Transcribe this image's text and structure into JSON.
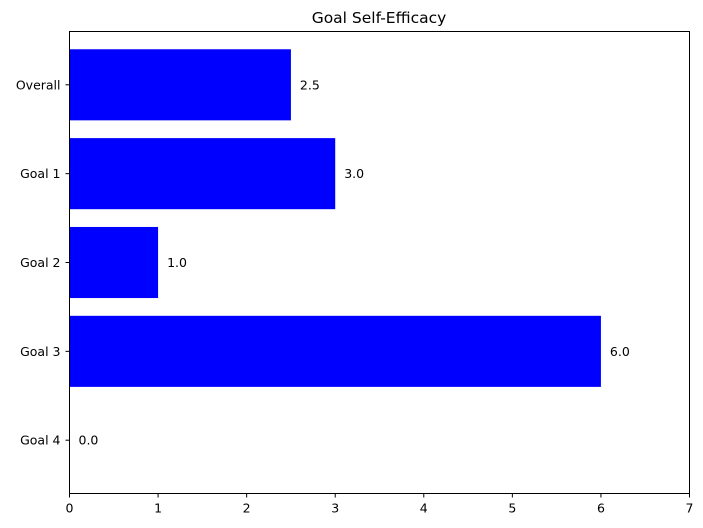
{
  "chart_data": {
    "type": "bar",
    "orientation": "horizontal",
    "title": "Goal Self-Efficacy",
    "xlabel": "",
    "ylabel": "",
    "categories": [
      "Overall",
      "Goal 1",
      "Goal 2",
      "Goal 3",
      "Goal 4"
    ],
    "values": [
      2.5,
      3.0,
      1.0,
      6.0,
      0.0
    ],
    "data_labels": [
      "2.5",
      "3.0",
      "1.0",
      "6.0",
      "0.0"
    ],
    "xlim": [
      0,
      7
    ],
    "xticks": [
      0,
      1,
      2,
      3,
      4,
      5,
      6,
      7
    ],
    "bar_color": "#0000ff",
    "grid": false,
    "legend": "none"
  }
}
